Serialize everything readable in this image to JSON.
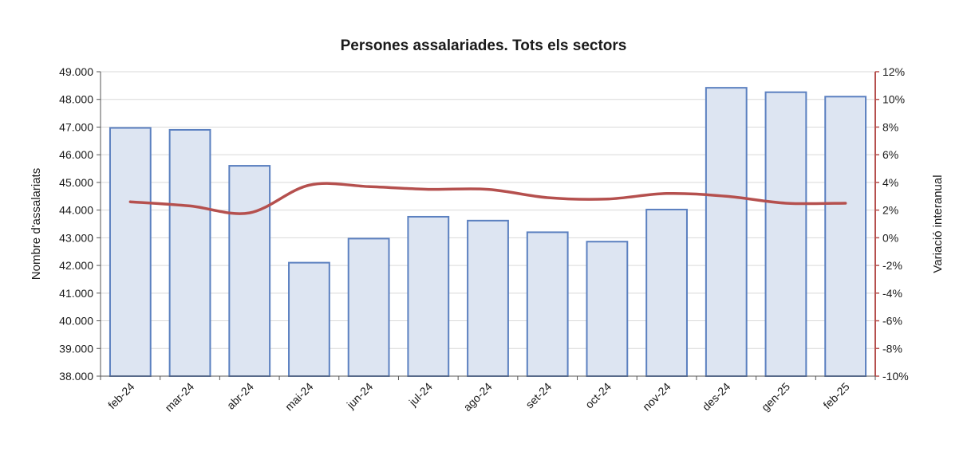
{
  "chart_data": {
    "type": "bar",
    "title": "Persones assalariades. Tots els sectors",
    "categories": [
      "feb-24",
      "mar-24",
      "abr-24",
      "mai-24",
      "jun-24",
      "jul-24",
      "ago-24",
      "set-24",
      "oct-24",
      "nov-24",
      "des-24",
      "gen-25",
      "feb-25"
    ],
    "series": [
      {
        "type": "bar",
        "axis": "left",
        "values": [
          46970,
          46900,
          45600,
          42100,
          42970,
          43760,
          43620,
          43200,
          42860,
          44020,
          48420,
          48260,
          48100
        ]
      },
      {
        "type": "line",
        "axis": "right",
        "values": [
          2.6,
          2.3,
          1.8,
          3.8,
          3.7,
          3.5,
          3.5,
          2.9,
          2.8,
          3.2,
          3.0,
          2.5,
          2.5
        ]
      }
    ],
    "ylabel": "Nombre d'assalariats",
    "ylim": [
      38000,
      49000
    ],
    "yticks": [
      "38.000",
      "39.000",
      "40.000",
      "41.000",
      "42.000",
      "43.000",
      "44.000",
      "45.000",
      "46.000",
      "47.000",
      "48.000",
      "49.000"
    ],
    "y2label": "Variació interanual",
    "y2lim": [
      -10,
      12
    ],
    "y2ticks": [
      "-10%",
      "-8%",
      "-6%",
      "-4%",
      "-2%",
      "0%",
      "2%",
      "4%",
      "6%",
      "8%",
      "10%",
      "12%"
    ],
    "grid": true,
    "legend": "none",
    "colors": {
      "bar_fill": "#dde5f2",
      "bar_stroke": "#5b80c0",
      "line": "#b5504e",
      "right_axis": "#b5504e",
      "grid": "#d9d9d9"
    }
  }
}
